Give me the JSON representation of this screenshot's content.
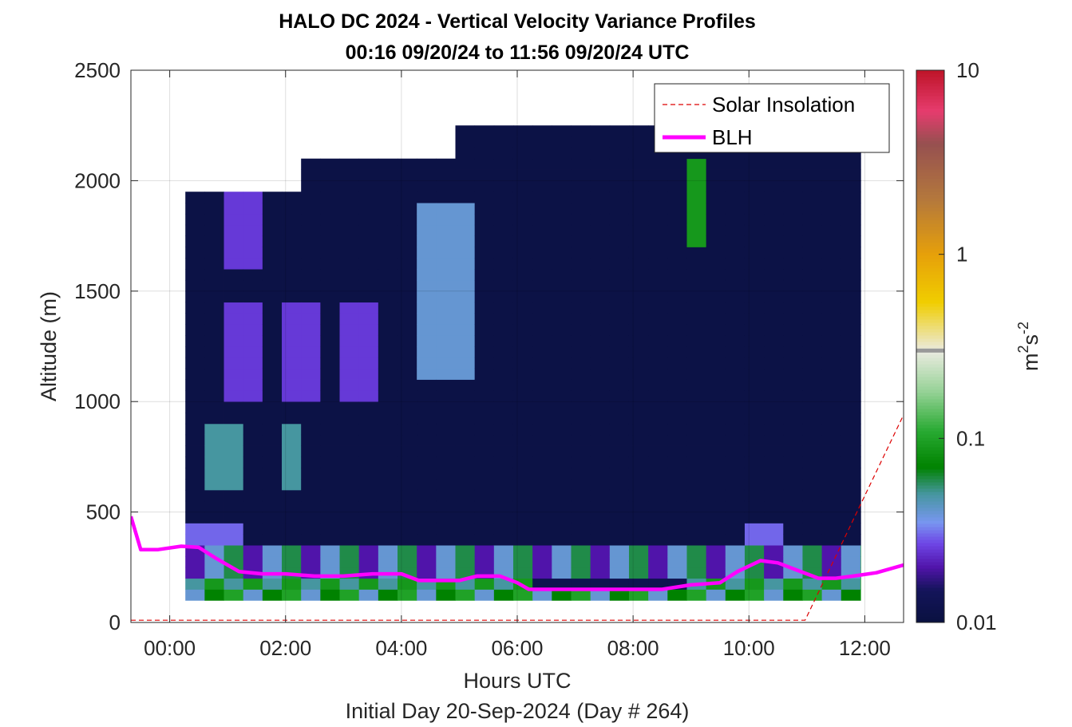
{
  "chart_data": {
    "type": "heatmap",
    "title": "HALO DC 2024 - Vertical Velocity Variance Profiles",
    "subtitle": "00:16 09/20/24 to 11:56 09/20/24  UTC",
    "xlabel": "Hours UTC",
    "xlabel2": "Initial Day 20-Sep-2024 (Day # 264)",
    "ylabel": "Altitude (m)",
    "xlim": [
      -0.67,
      12.67
    ],
    "ylim": [
      0,
      2500
    ],
    "x_ticks": [
      0,
      2,
      4,
      6,
      8,
      10,
      12
    ],
    "x_tick_labels": [
      "00:00",
      "02:00",
      "04:00",
      "06:00",
      "08:00",
      "10:00",
      "12:00"
    ],
    "y_ticks": [
      0,
      500,
      1000,
      1500,
      2000,
      2500
    ],
    "y_tick_labels": [
      "0",
      "500",
      "1000",
      "1500",
      "2000",
      "2500"
    ],
    "grid": true,
    "colorbar": {
      "scale": "log",
      "range": [
        0.01,
        10
      ],
      "ticks": [
        0.01,
        0.1,
        1,
        10
      ],
      "tick_labels": [
        "0.01",
        "0.1",
        "1",
        "10"
      ],
      "label": "m^2 s^-2",
      "label_base1": "m",
      "label_exp1": "2",
      "label_base2": "s",
      "label_exp2": "-2",
      "threshold_marker": 0.3
    },
    "heatmap": {
      "time_start": 0.27,
      "time_end": 11.93,
      "time_step": 0.333,
      "altitude_start": 100,
      "altitude_step": 50,
      "background_level": 0.011
    },
    "series": [
      {
        "name": "Solar Insolation",
        "style": "dashed",
        "color": "#dd0000",
        "x": [
          -0.67,
          10.97,
          12.67
        ],
        "y": [
          10,
          10,
          940
        ]
      },
      {
        "name": "BLH",
        "style": "solid",
        "color": "#ff00ff",
        "x": [
          -0.67,
          -0.5,
          -0.2,
          0.2,
          0.5,
          0.8,
          1.2,
          1.6,
          2.0,
          2.5,
          3.0,
          3.5,
          4.0,
          4.3,
          4.7,
          5.0,
          5.3,
          5.7,
          6.0,
          6.2,
          6.5,
          7.0,
          7.5,
          8.0,
          8.5,
          9.0,
          9.5,
          9.8,
          10.2,
          10.5,
          10.8,
          11.2,
          11.5,
          11.8,
          12.2,
          12.67
        ],
        "y": [
          480,
          330,
          330,
          345,
          340,
          290,
          230,
          220,
          220,
          210,
          210,
          220,
          220,
          190,
          190,
          190,
          210,
          210,
          180,
          150,
          150,
          150,
          150,
          150,
          150,
          170,
          180,
          230,
          280,
          270,
          240,
          200,
          200,
          210,
          225,
          260
        ]
      }
    ],
    "legend": {
      "location": "top-right",
      "entries": [
        "Solar Insolation",
        "BLH"
      ]
    }
  }
}
